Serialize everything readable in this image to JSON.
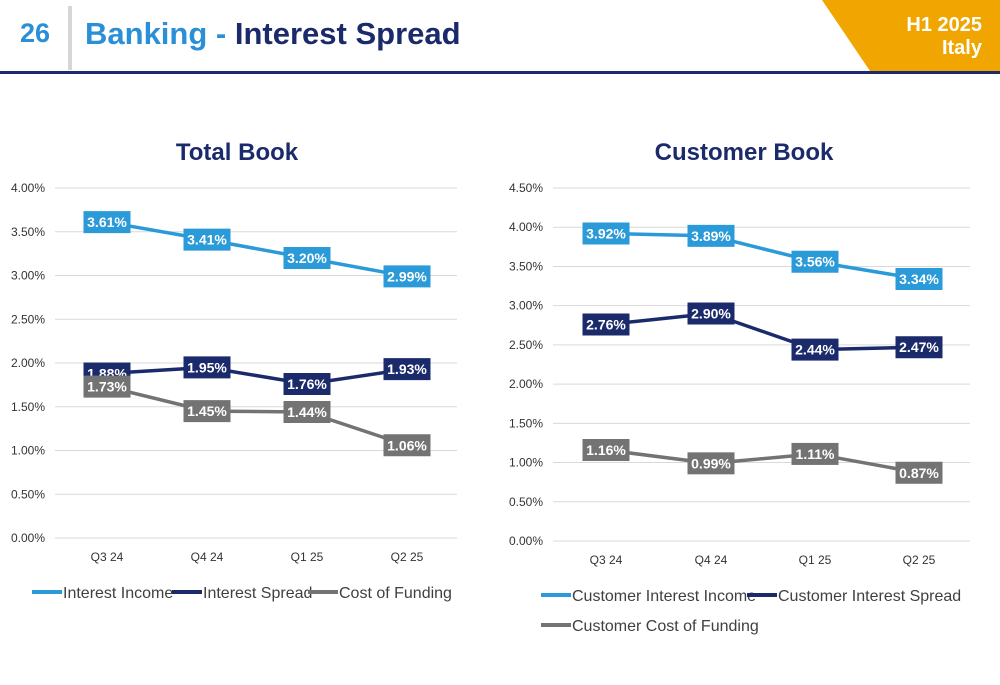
{
  "header": {
    "page_number": "26",
    "title_part1": "Banking",
    "title_separator": "-",
    "title_part2": "Interest Spread",
    "period": "H1 2025",
    "region": "Italy",
    "accent_color": "#2a8fd6",
    "dark_color": "#1b2a6b",
    "badge_color": "#f0a500"
  },
  "chart_data": [
    {
      "type": "line",
      "title": "Total Book",
      "categories": [
        "Q3 24",
        "Q4 24",
        "Q1 25",
        "Q2 25"
      ],
      "ylim": [
        0,
        4.0
      ],
      "yticks": [
        "0.00%",
        "0.50%",
        "1.00%",
        "1.50%",
        "2.00%",
        "2.50%",
        "3.00%",
        "3.50%",
        "4.00%"
      ],
      "grid": true,
      "legend_position": "bottom",
      "series": [
        {
          "name": "Interest Income",
          "color": "#2a9ad9",
          "values": [
            3.61,
            3.41,
            3.2,
            2.99
          ],
          "labels": [
            "3.61%",
            "3.41%",
            "3.20%",
            "2.99%"
          ]
        },
        {
          "name": "Interest Spread",
          "color": "#1b2a6b",
          "values": [
            1.88,
            1.95,
            1.76,
            1.93
          ],
          "labels": [
            "1.88%",
            "1.95%",
            "1.76%",
            "1.93%"
          ]
        },
        {
          "name": "Cost of Funding",
          "color": "#737373",
          "values": [
            1.73,
            1.45,
            1.44,
            1.06
          ],
          "labels": [
            "1.73%",
            "1.45%",
            "1.44%",
            "1.06%"
          ]
        }
      ]
    },
    {
      "type": "line",
      "title": "Customer Book",
      "categories": [
        "Q3 24",
        "Q4 24",
        "Q1 25",
        "Q2 25"
      ],
      "ylim": [
        0,
        4.5
      ],
      "yticks": [
        "0.00%",
        "0.50%",
        "1.00%",
        "1.50%",
        "2.00%",
        "2.50%",
        "3.00%",
        "3.50%",
        "4.00%",
        "4.50%"
      ],
      "grid": true,
      "legend_position": "bottom",
      "series": [
        {
          "name": "Customer Interest Income",
          "color": "#2a9ad9",
          "values": [
            3.92,
            3.89,
            3.56,
            3.34
          ],
          "labels": [
            "3.92%",
            "3.89%",
            "3.56%",
            "3.34%"
          ]
        },
        {
          "name": "Customer Interest Spread",
          "color": "#1b2a6b",
          "values": [
            2.76,
            2.9,
            2.44,
            2.47
          ],
          "labels": [
            "2.76%",
            "2.90%",
            "2.44%",
            "2.47%"
          ]
        },
        {
          "name": "Customer Cost of Funding",
          "color": "#737373",
          "values": [
            1.16,
            0.99,
            1.11,
            0.87
          ],
          "labels": [
            "1.16%",
            "0.99%",
            "1.11%",
            "0.87%"
          ]
        }
      ]
    }
  ]
}
